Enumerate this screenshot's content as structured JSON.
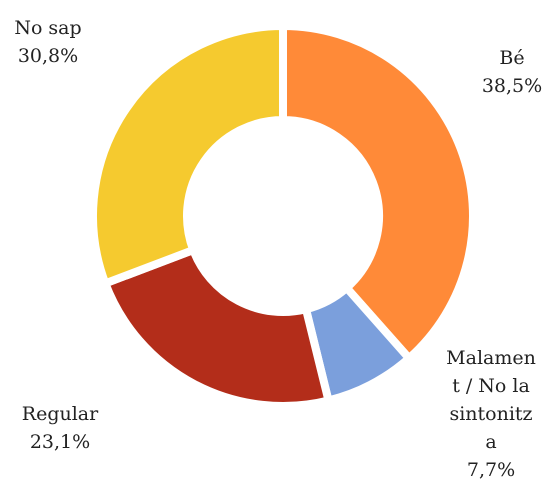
{
  "chart_data": {
    "type": "pie",
    "variant": "donut",
    "categories": [
      "Bé",
      "Malament / No la sintonitza",
      "Regular",
      "No sap"
    ],
    "values": [
      38.5,
      7.7,
      23.1,
      30.8
    ],
    "value_labels": [
      "38,5%",
      "7,7%",
      "23,1%",
      "30,8%"
    ],
    "label_lines": [
      [
        "Bé",
        "38,5%"
      ],
      [
        "Malamen",
        "t / No la",
        "sintonitz",
        "a",
        "7,7%"
      ],
      [
        "Regular",
        "23,1%"
      ],
      [
        "No sap",
        "30,8%"
      ]
    ],
    "colors": [
      "#FF8A38",
      "#7B9FDC",
      "#B32D1A",
      "#F5CA2F"
    ],
    "title": "",
    "legend": "none",
    "start": "top, clockwise"
  }
}
